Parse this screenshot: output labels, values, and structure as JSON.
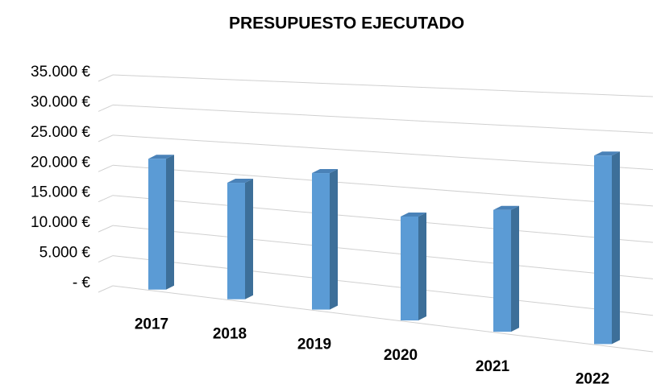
{
  "chart_data": {
    "type": "bar3d",
    "title": "PRESUPUESTO EJECUTADO",
    "categories": [
      "2017",
      "2018",
      "2019",
      "2020",
      "2021",
      "2022"
    ],
    "values": [
      21600,
      18700,
      21200,
      15700,
      17800,
      26500
    ],
    "color": "#5b9bd5",
    "ylim": [
      0,
      35000
    ],
    "yticks": [
      {
        "value": 0,
        "label": "- €"
      },
      {
        "value": 5000,
        "label": "5.000 €"
      },
      {
        "value": 10000,
        "label": "10.000 €"
      },
      {
        "value": 15000,
        "label": "15.000 €"
      },
      {
        "value": 20000,
        "label": "20.000 €"
      },
      {
        "value": 25000,
        "label": "25.000 €"
      },
      {
        "value": 30000,
        "label": "30.000 €"
      },
      {
        "value": 35000,
        "label": "35.000 €"
      }
    ],
    "grid": true
  }
}
